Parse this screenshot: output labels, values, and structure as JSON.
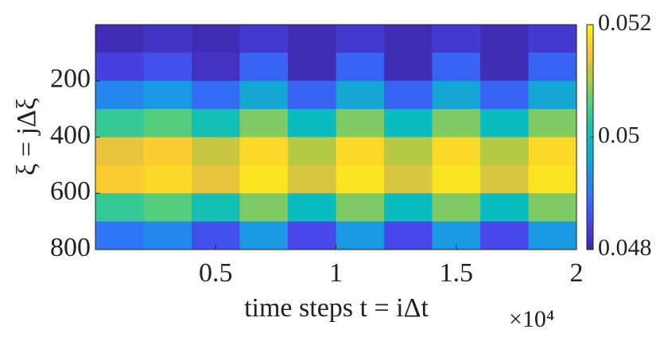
{
  "chart_data": {
    "type": "heatmap",
    "x_label": "time steps t = iΔt",
    "y_label": "ξ = jΔξ",
    "x_multiplier": "×10⁴",
    "x_bins": [
      0,
      2000,
      4000,
      6000,
      8000,
      10000,
      12000,
      14000,
      16000,
      18000,
      20000
    ],
    "y_bins": [
      0,
      100,
      200,
      300,
      400,
      500,
      600,
      700,
      800
    ],
    "values": [
      [
        0.0481,
        0.0482,
        0.0481,
        0.0483,
        0.0481,
        0.0483,
        0.0481,
        0.0483,
        0.0481,
        0.0483
      ],
      [
        0.0484,
        0.0486,
        0.0482,
        0.0488,
        0.0481,
        0.0488,
        0.0481,
        0.0488,
        0.0481,
        0.0488
      ],
      [
        0.0492,
        0.0494,
        0.0489,
        0.0496,
        0.0488,
        0.0496,
        0.0488,
        0.0496,
        0.0488,
        0.0496
      ],
      [
        0.0504,
        0.0506,
        0.0501,
        0.0508,
        0.05,
        0.0508,
        0.05,
        0.0508,
        0.05,
        0.0508
      ],
      [
        0.0514,
        0.0516,
        0.0512,
        0.0517,
        0.0511,
        0.0517,
        0.0511,
        0.0517,
        0.0511,
        0.0517
      ],
      [
        0.0516,
        0.0517,
        0.0514,
        0.0518,
        0.0513,
        0.0518,
        0.0513,
        0.0518,
        0.0513,
        0.0518
      ],
      [
        0.0504,
        0.0506,
        0.0501,
        0.0508,
        0.05,
        0.0508,
        0.05,
        0.0508,
        0.05,
        0.0508
      ],
      [
        0.049,
        0.0492,
        0.0486,
        0.0494,
        0.0485,
        0.0494,
        0.0485,
        0.0494,
        0.0485,
        0.0494
      ]
    ],
    "xlim": [
      0,
      20000
    ],
    "xticks": [
      {
        "value": 5000,
        "label": "0.5"
      },
      {
        "value": 10000,
        "label": "1"
      },
      {
        "value": 15000,
        "label": "1.5"
      },
      {
        "value": 20000,
        "label": "2"
      }
    ],
    "ylim": [
      0,
      800
    ],
    "y_reversed": true,
    "yticks": [
      200,
      400,
      600,
      800
    ],
    "clim": [
      0.048,
      0.052
    ],
    "cticks": [
      0.048,
      0.05,
      0.052
    ],
    "colormap": "parula"
  }
}
